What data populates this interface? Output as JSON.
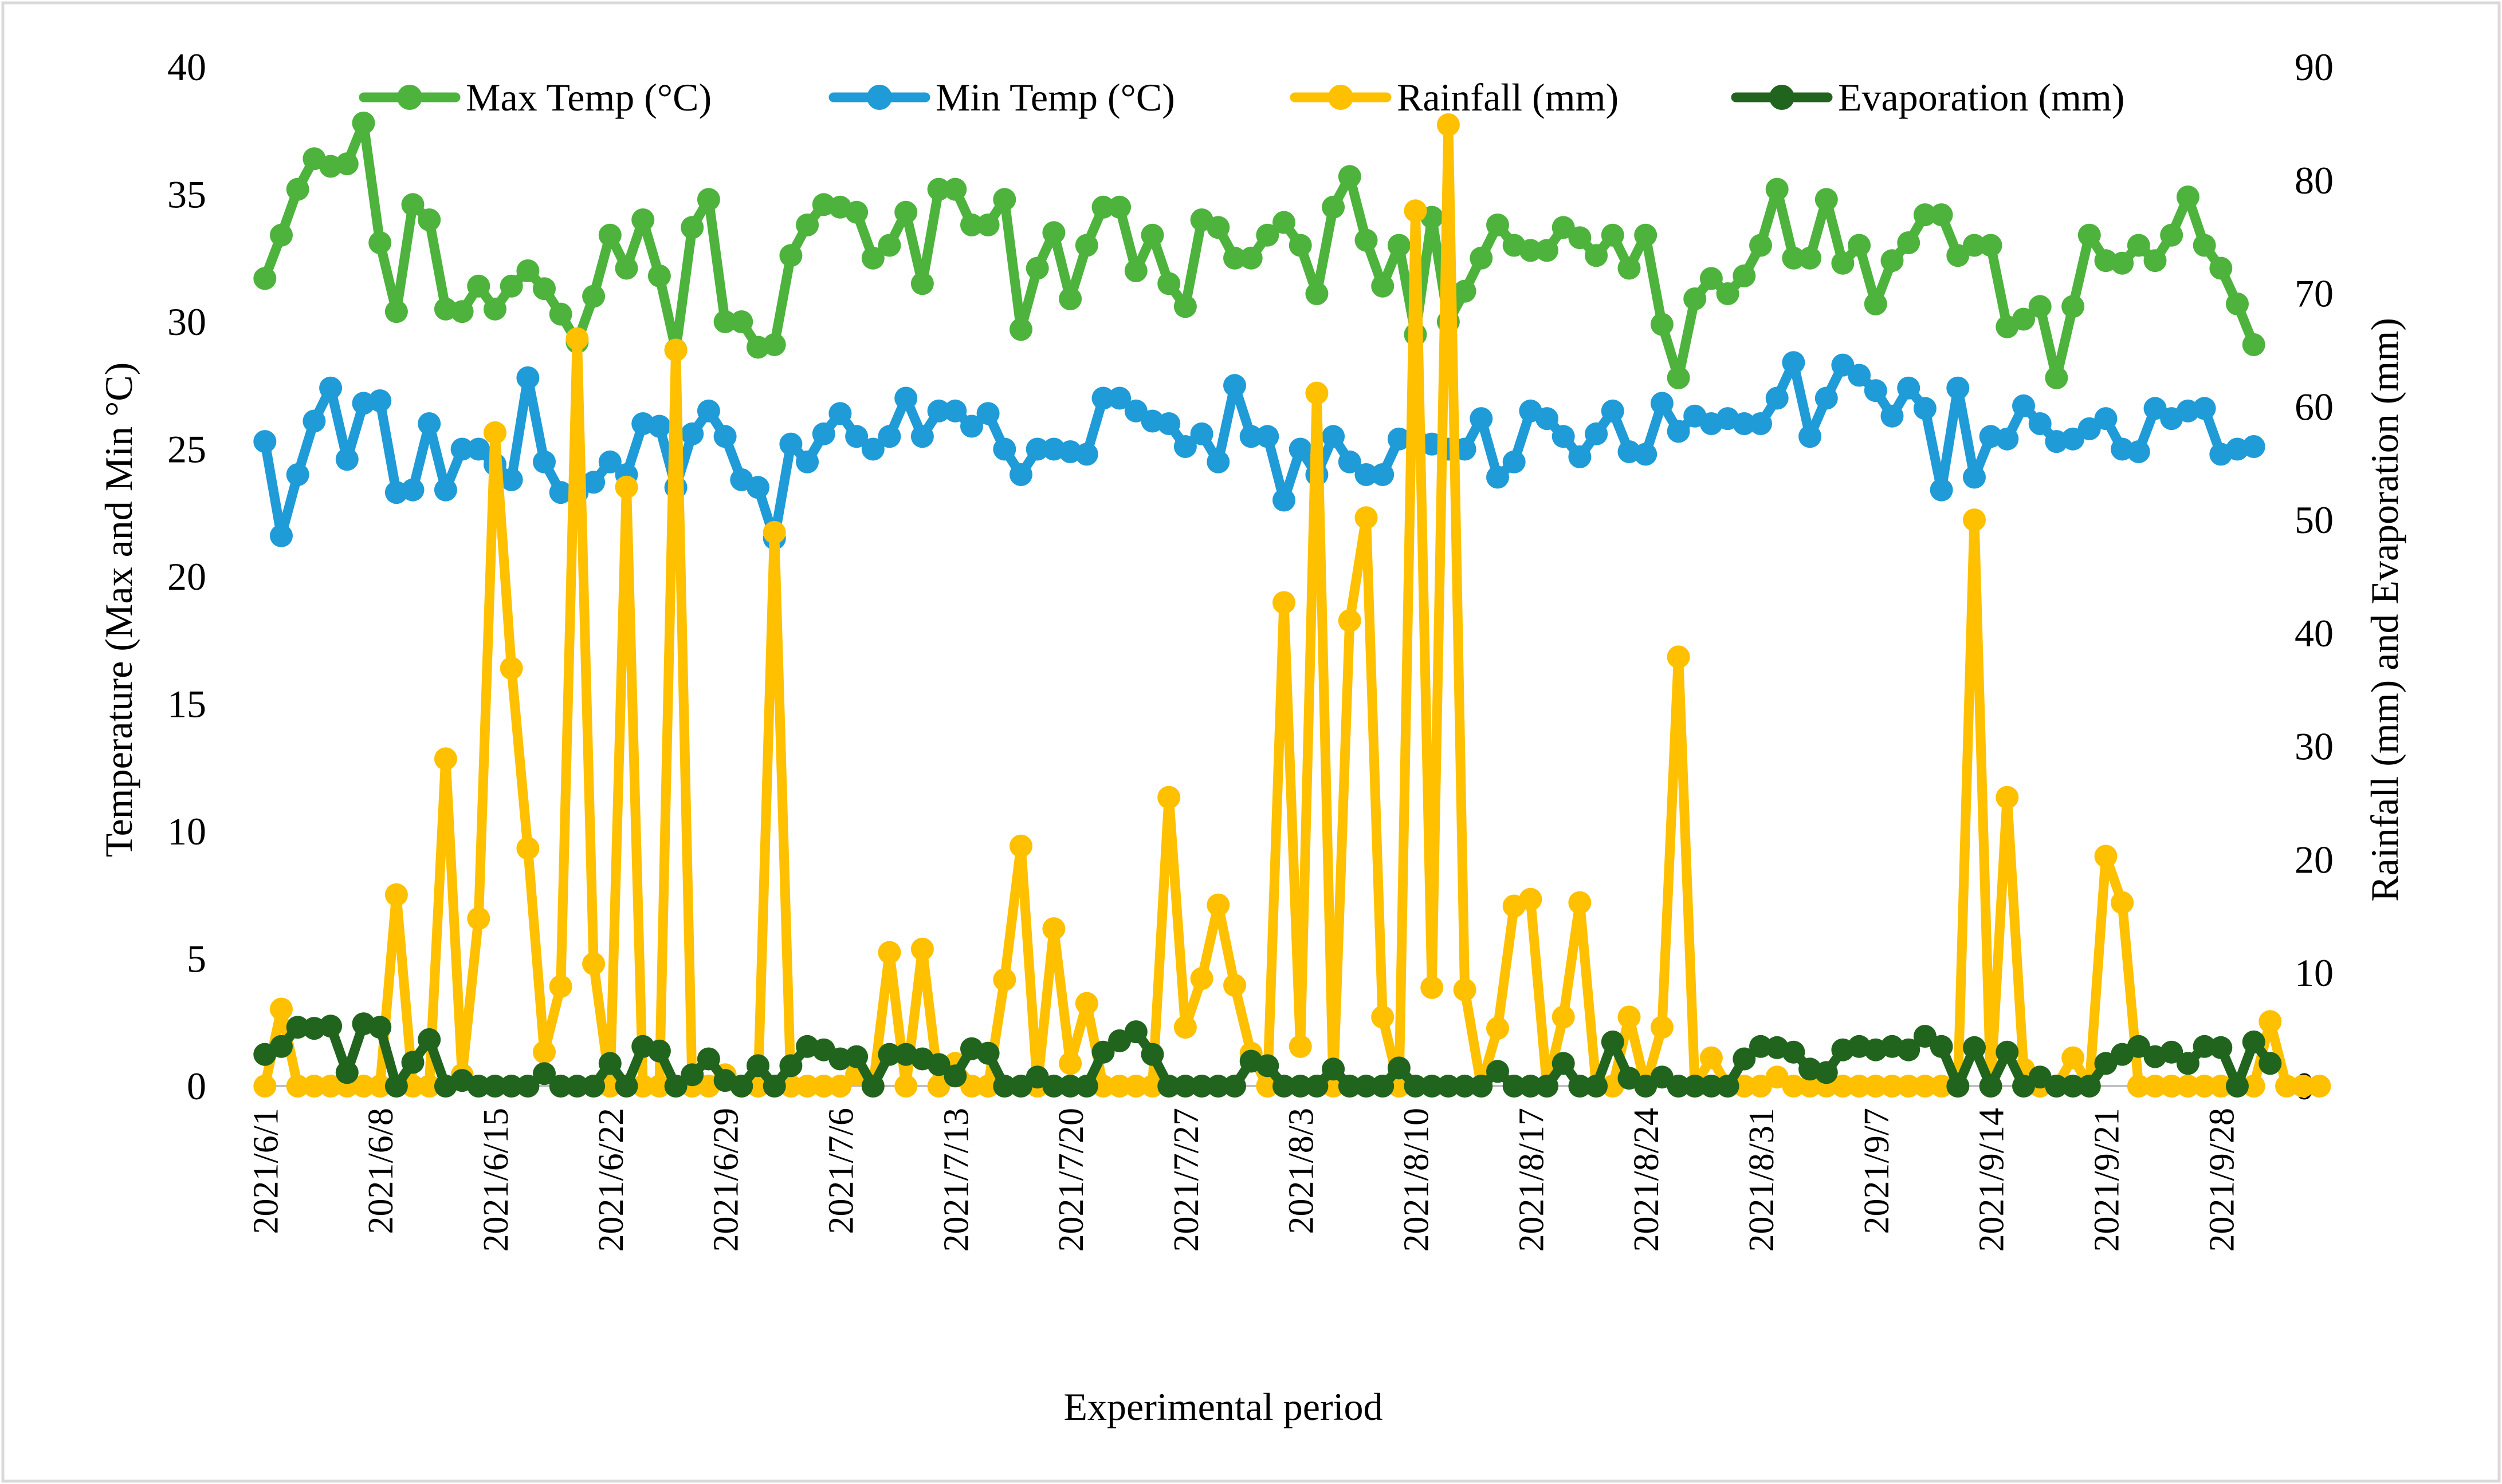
{
  "chart_data": {
    "type": "line",
    "title": "",
    "xlabel": "Experimental period",
    "ylabel_left": "Temperature (Max and Min °C)",
    "ylabel_right": "Rainfall (mm) and Evaporation (mm)",
    "ylim_left": [
      0,
      40
    ],
    "yticks_left": [
      0,
      5,
      10,
      15,
      20,
      25,
      30,
      35,
      40
    ],
    "ylim_right": [
      0,
      90
    ],
    "yticks_right": [
      0,
      10,
      20,
      30,
      40,
      50,
      60,
      70,
      80,
      90
    ],
    "grid": false,
    "legend_position": "top",
    "start_date": "2021-06-01",
    "num_days": 122,
    "x_tick_labels": [
      "2021/6/1",
      "2021/6/8",
      "2021/6/15",
      "2021/6/22",
      "2021/6/29",
      "2021/7/6",
      "2021/7/13",
      "2021/7/20",
      "2021/7/27",
      "2021/8/3",
      "2021/8/10",
      "2021/8/17",
      "2021/8/24",
      "2021/8/31",
      "2021/9/7",
      "2021/9/14",
      "2021/9/21",
      "2021/9/28"
    ],
    "x_tick_day_index": [
      0,
      7,
      14,
      21,
      28,
      35,
      42,
      49,
      56,
      63,
      70,
      77,
      84,
      91,
      98,
      105,
      112,
      119
    ],
    "series": [
      {
        "name": "Max Temp (°C)",
        "axis": "left",
        "color": "#4db33d",
        "values": [
          31.7,
          33.4,
          35.2,
          36.4,
          36.1,
          36.2,
          37.8,
          33.1,
          30.4,
          34.6,
          34.0,
          30.5,
          30.4,
          31.4,
          30.5,
          31.4,
          32.0,
          31.3,
          30.3,
          29.2,
          31.0,
          33.4,
          32.1,
          34.0,
          31.8,
          28.9,
          33.7,
          34.8,
          30.0,
          30.0,
          29.0,
          29.1,
          32.6,
          33.8,
          34.6,
          34.5,
          34.3,
          32.5,
          33.0,
          34.3,
          31.5,
          35.2,
          35.2,
          33.8,
          33.8,
          34.8,
          29.7,
          32.1,
          33.5,
          30.9,
          33.0,
          34.5,
          34.5,
          32.0,
          33.4,
          31.5,
          30.6,
          34.0,
          33.7,
          32.5,
          32.5,
          33.4,
          33.9,
          33.0,
          31.1,
          34.5,
          35.7,
          33.2,
          31.4,
          33.0,
          29.5,
          34.1,
          30.0,
          31.2,
          32.5,
          33.8,
          33.0,
          32.8,
          32.8,
          33.7,
          33.3,
          32.6,
          33.4,
          32.1,
          33.4,
          29.9,
          27.8,
          30.9,
          31.7,
          31.1,
          31.8,
          33.0,
          35.2,
          32.5,
          32.5,
          34.8,
          32.3,
          33.0,
          30.7,
          32.4,
          33.1,
          34.2,
          34.2,
          32.6,
          33.0,
          33.0,
          29.8,
          30.1,
          30.6,
          27.8,
          30.6,
          33.4,
          32.4,
          32.3,
          33.0,
          32.4,
          33.4,
          34.9,
          33.0,
          32.1,
          30.7,
          29.1
        ]
      },
      {
        "name": "Min Temp (°C)",
        "axis": "left",
        "color": "#1f9bd7",
        "values": [
          25.3,
          21.6,
          24.0,
          26.1,
          27.4,
          24.6,
          26.8,
          26.9,
          23.3,
          23.4,
          26.0,
          23.4,
          25.0,
          25.0,
          24.4,
          23.8,
          27.8,
          24.5,
          23.3,
          23.3,
          23.7,
          24.5,
          24.0,
          26.0,
          25.9,
          23.5,
          25.6,
          26.5,
          25.5,
          23.8,
          23.5,
          21.5,
          25.2,
          24.5,
          25.6,
          26.4,
          25.5,
          25.0,
          25.5,
          27.0,
          25.5,
          26.5,
          26.5,
          25.9,
          26.4,
          25.0,
          24.0,
          25.0,
          25.0,
          24.9,
          24.8,
          27.0,
          27.0,
          26.5,
          26.1,
          26.0,
          25.1,
          25.6,
          24.5,
          27.5,
          25.5,
          25.5,
          23.0,
          25.0,
          24.0,
          25.5,
          24.5,
          24.0,
          24.0,
          25.4,
          25.4,
          25.2,
          25.0,
          25.0,
          26.2,
          23.9,
          24.5,
          26.5,
          26.2,
          25.5,
          24.7,
          25.6,
          26.5,
          24.9,
          24.8,
          26.8,
          25.7,
          26.3,
          26.0,
          26.2,
          26.0,
          26.0,
          27.0,
          28.4,
          25.5,
          27.0,
          28.3,
          27.9,
          27.3,
          26.3,
          27.4,
          26.6,
          23.4,
          27.4,
          23.9,
          25.5,
          25.4,
          26.7,
          26.0,
          25.3,
          25.4,
          25.8,
          26.2,
          25.0,
          24.9,
          26.6,
          26.2,
          26.5,
          26.6,
          24.8,
          25.0,
          25.1
        ]
      },
      {
        "name": "Rainfall (mm)",
        "axis": "right",
        "color": "#ffc000",
        "values": [
          0,
          6.8,
          0,
          0,
          0,
          0,
          0,
          0,
          16.9,
          0,
          0,
          28.9,
          1.0,
          14.8,
          57.7,
          36.9,
          21.0,
          3.0,
          8.8,
          66.0,
          10.8,
          0,
          52.9,
          0,
          0,
          65.0,
          0,
          0,
          1.0,
          0,
          0,
          48.9,
          0,
          0,
          0,
          0,
          1.0,
          0,
          11.8,
          0,
          12.1,
          0,
          2.0,
          0,
          0,
          9.4,
          21.2,
          0,
          13.9,
          2.0,
          7.3,
          0,
          0,
          0,
          0,
          25.5,
          5.2,
          9.5,
          16.0,
          8.9,
          2.9,
          0,
          42.7,
          3.5,
          61.2,
          0,
          41.1,
          50.2,
          6.1,
          0,
          77.3,
          8.7,
          84.9,
          8.5,
          0,
          5.1,
          15.9,
          16.5,
          0,
          6.1,
          16.2,
          0,
          0,
          6.1,
          0,
          5.2,
          37.9,
          0,
          2.5,
          0,
          0,
          0,
          0.8,
          0,
          0,
          0,
          0,
          0,
          0,
          0,
          0,
          0,
          0,
          0,
          50.0,
          0,
          25.5,
          1.5,
          0,
          0,
          2.5,
          0,
          20.3,
          16.2,
          0,
          0,
          0,
          0,
          0,
          0,
          0,
          0,
          5.7,
          0,
          0,
          0
        ]
      },
      {
        "name": "Evaporation (mm)",
        "axis": "right",
        "color": "#20641e",
        "values": [
          2.8,
          3.5,
          5.2,
          5.1,
          5.3,
          1.2,
          5.5,
          5.2,
          0,
          2.1,
          4.1,
          0,
          0.5,
          0,
          0,
          0,
          0,
          1.1,
          0,
          0,
          0,
          2.0,
          0,
          3.5,
          3.1,
          0,
          1.0,
          2.4,
          0.5,
          0,
          1.8,
          0,
          1.8,
          3.5,
          3.2,
          2.4,
          2.6,
          0,
          2.8,
          2.8,
          2.4,
          1.9,
          0.9,
          3.3,
          2.9,
          0,
          0,
          0.8,
          0,
          0,
          0,
          3.0,
          4.0,
          4.8,
          2.8,
          0,
          0,
          0,
          0,
          0,
          2.2,
          1.8,
          0,
          0,
          0,
          1.5,
          0,
          0,
          0,
          1.6,
          0,
          0,
          0,
          0,
          0,
          1.3,
          0,
          0,
          0,
          2.0,
          0,
          0,
          3.9,
          0.7,
          0,
          0.8,
          0,
          0,
          0,
          0,
          2.4,
          3.5,
          3.4,
          3.0,
          1.5,
          1.2,
          3.2,
          3.5,
          3.2,
          3.5,
          3.2,
          4.4,
          3.5,
          0,
          3.4,
          0,
          3.0,
          0,
          0.8,
          0,
          0,
          0,
          2.0,
          2.8,
          3.5,
          2.6,
          3.0,
          2.0,
          3.5,
          3.4,
          0,
          3.9,
          2.0
        ]
      }
    ]
  }
}
